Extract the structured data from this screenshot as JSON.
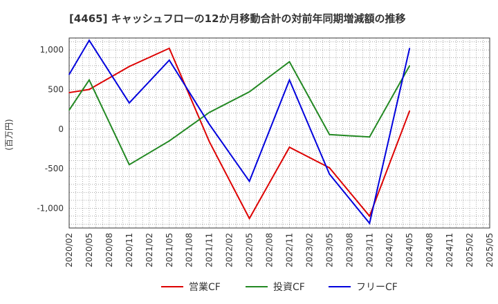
{
  "chart_data": {
    "type": "line",
    "title": "[4465]  キャッシュフローの12か月移動合計の対前年同期増減額の推移",
    "ylabel": "(百万円)",
    "xlabel": "",
    "categories": [
      "2020/02",
      "2020/05",
      "2020/08",
      "2020/11",
      "2021/02",
      "2021/05",
      "2021/08",
      "2021/11",
      "2022/02",
      "2022/05",
      "2022/08",
      "2022/11",
      "2023/02",
      "2023/05",
      "2023/08",
      "2023/11",
      "2024/02",
      "2024/05",
      "2024/08",
      "2024/11",
      "2025/02",
      "2025/05"
    ],
    "yticks": [
      -1000,
      -500,
      0,
      500,
      1000
    ],
    "ytick_labels": [
      "-1,000",
      "-500",
      "0",
      "500",
      "1,000"
    ],
    "ylim": [
      -1250,
      1150
    ],
    "grid": true,
    "legend_position": "bottom",
    "series": [
      {
        "name": "営業CF",
        "color": "#dd0000",
        "x": [
          "2020/02",
          "2020/05",
          "2020/11",
          "2021/05",
          "2021/11",
          "2022/05",
          "2022/11",
          "2023/05",
          "2023/11",
          "2024/05"
        ],
        "values": [
          460,
          500,
          790,
          1020,
          -160,
          -1130,
          -230,
          -490,
          -1100,
          230
        ]
      },
      {
        "name": "投資CF",
        "color": "#228822",
        "x": [
          "2020/02",
          "2020/05",
          "2020/11",
          "2021/05",
          "2021/11",
          "2022/05",
          "2022/11",
          "2023/05",
          "2023/11",
          "2024/05"
        ],
        "values": [
          240,
          620,
          -450,
          -150,
          210,
          470,
          850,
          -70,
          -100,
          800
        ]
      },
      {
        "name": "フリーCF",
        "color": "#0000dd",
        "x": [
          "2020/02",
          "2020/05",
          "2020/11",
          "2021/05",
          "2021/11",
          "2022/05",
          "2022/11",
          "2023/05",
          "2023/11",
          "2024/05"
        ],
        "values": [
          690,
          1120,
          330,
          870,
          60,
          -660,
          620,
          -570,
          -1190,
          1020
        ]
      }
    ]
  }
}
